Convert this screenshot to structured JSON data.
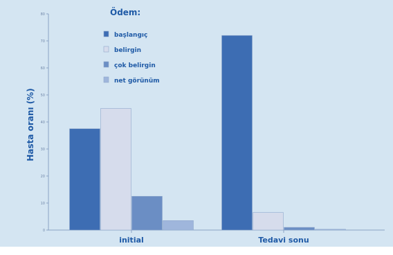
{
  "chart_data": {
    "type": "bar",
    "legend_title": "Ödem:",
    "legend_position": "top-left",
    "ylabel": "Hasta oranı (%)",
    "xlabel": "",
    "ylim": [
      0,
      80
    ],
    "yticks": [
      "0",
      "10",
      "20",
      "30",
      "40",
      "50",
      "60",
      "70",
      "80"
    ],
    "categories": [
      "initial",
      "Tedavi sonu"
    ],
    "series": [
      {
        "name": "başlangıç",
        "color": "#3d6db3",
        "values": [
          37.5,
          72
        ]
      },
      {
        "name": "belirgin",
        "color": "#d6dcec",
        "values": [
          45,
          6.5
        ]
      },
      {
        "name": "çok belirgin",
        "color": "#6b8ec4",
        "values": [
          12.5,
          1
        ]
      },
      {
        "name": "net görünüm",
        "color": "#9fb6dc",
        "values": [
          3.5,
          0.3
        ]
      }
    ],
    "grid": false
  }
}
